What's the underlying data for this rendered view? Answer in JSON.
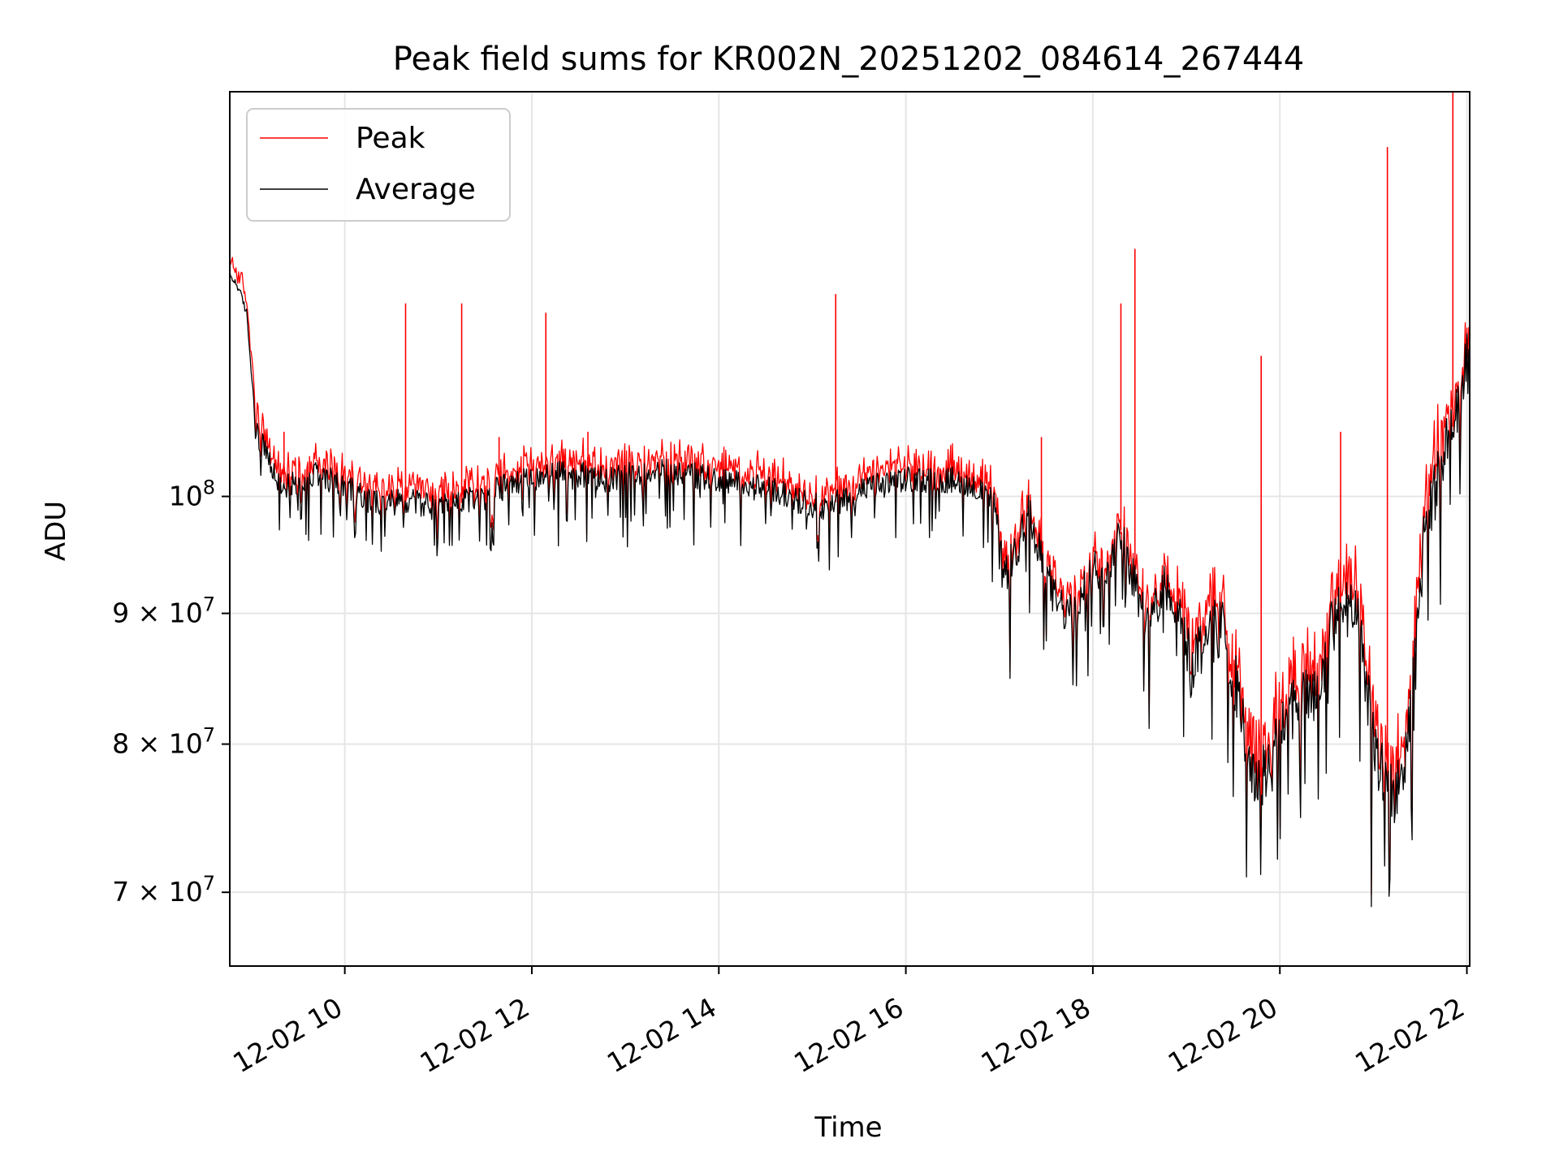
{
  "chart_data": {
    "type": "line",
    "title": "Peak field sums for KR002N_20251202_084614_267444",
    "xlabel": "Time",
    "ylabel": "ADU",
    "yscale": "log",
    "x_range_hours": [
      8.77,
      22.03
    ],
    "ylim": [
      65500000,
      144000000
    ],
    "grid": true,
    "legend_position": "top-left",
    "x_ticks": [
      {
        "value": 10,
        "label": "12-02 10"
      },
      {
        "value": 12,
        "label": "12-02 12"
      },
      {
        "value": 14,
        "label": "12-02 14"
      },
      {
        "value": 16,
        "label": "12-02 16"
      },
      {
        "value": 18,
        "label": "12-02 18"
      },
      {
        "value": 20,
        "label": "12-02 20"
      },
      {
        "value": 22,
        "label": "12-02 22"
      }
    ],
    "y_ticks": [
      {
        "value": 100000000,
        "base": "10",
        "exp": "8"
      },
      {
        "value": 90000000,
        "base": "9 × 10",
        "exp": "7"
      },
      {
        "value": 80000000,
        "base": "8 × 10",
        "exp": "7"
      },
      {
        "value": 70000000,
        "base": "7 × 10",
        "exp": "7"
      }
    ],
    "series": [
      {
        "name": "Peak",
        "color": "#ff0000"
      },
      {
        "name": "Average",
        "color": "#000000"
      }
    ],
    "average_trend": [
      [
        8.77,
        122000000
      ],
      [
        8.85,
        121000000
      ],
      [
        8.95,
        118000000
      ],
      [
        9.0,
        112000000
      ],
      [
        9.05,
        106000000
      ],
      [
        9.15,
        104000000
      ],
      [
        9.3,
        101000000
      ],
      [
        9.5,
        101000000
      ],
      [
        9.7,
        102000000
      ],
      [
        10.0,
        101000000
      ],
      [
        10.3,
        99500000
      ],
      [
        10.7,
        99500000
      ],
      [
        11.0,
        99000000
      ],
      [
        11.3,
        99500000
      ],
      [
        11.6,
        100500000
      ],
      [
        11.9,
        101500000
      ],
      [
        12.2,
        102000000
      ],
      [
        12.5,
        102000000
      ],
      [
        12.8,
        101500000
      ],
      [
        13.1,
        102000000
      ],
      [
        13.4,
        102500000
      ],
      [
        13.7,
        102000000
      ],
      [
        14.0,
        101500000
      ],
      [
        14.3,
        101000000
      ],
      [
        14.6,
        100500000
      ],
      [
        14.9,
        99500000
      ],
      [
        15.1,
        99000000
      ],
      [
        15.4,
        100000000
      ],
      [
        15.7,
        101000000
      ],
      [
        16.0,
        101500000
      ],
      [
        16.3,
        101500000
      ],
      [
        16.6,
        101500000
      ],
      [
        16.8,
        100500000
      ],
      [
        16.95,
        98500000
      ],
      [
        17.05,
        92500000
      ],
      [
        17.2,
        95500000
      ],
      [
        17.3,
        99000000
      ],
      [
        17.4,
        95500000
      ],
      [
        17.6,
        91000000
      ],
      [
        17.8,
        89500000
      ],
      [
        17.9,
        91500000
      ],
      [
        18.0,
        93500000
      ],
      [
        18.2,
        94500000
      ],
      [
        18.3,
        97000000
      ],
      [
        18.45,
        92500000
      ],
      [
        18.6,
        88500000
      ],
      [
        18.75,
        92500000
      ],
      [
        18.95,
        90000000
      ],
      [
        19.05,
        85500000
      ],
      [
        19.2,
        88500000
      ],
      [
        19.4,
        88500000
      ],
      [
        19.55,
        84000000
      ],
      [
        19.7,
        77000000
      ],
      [
        19.85,
        78000000
      ],
      [
        20.0,
        81500000
      ],
      [
        20.2,
        83500000
      ],
      [
        20.4,
        83000000
      ],
      [
        20.55,
        88500000
      ],
      [
        20.7,
        91000000
      ],
      [
        20.85,
        88500000
      ],
      [
        21.0,
        80000000
      ],
      [
        21.15,
        77000000
      ],
      [
        21.3,
        76500000
      ],
      [
        21.45,
        86000000
      ],
      [
        21.55,
        98000000
      ],
      [
        21.7,
        101500000
      ],
      [
        21.8,
        105500000
      ],
      [
        21.9,
        107500000
      ],
      [
        22.03,
        114000000
      ]
    ],
    "peak_spikes": [
      [
        9.35,
        106000000
      ],
      [
        10.65,
        119000000
      ],
      [
        11.25,
        119000000
      ],
      [
        11.65,
        105500000
      ],
      [
        12.15,
        118000000
      ],
      [
        12.6,
        106000000
      ],
      [
        15.25,
        120000000
      ],
      [
        17.45,
        105500000
      ],
      [
        18.3,
        119000000
      ],
      [
        18.45,
        125000000
      ],
      [
        19.8,
        113500000
      ],
      [
        20.65,
        106000000
      ],
      [
        21.15,
        137000000
      ],
      [
        21.85,
        144000000
      ]
    ]
  }
}
